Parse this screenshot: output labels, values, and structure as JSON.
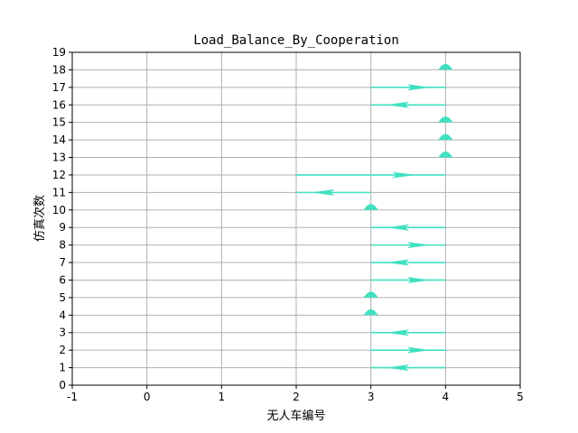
{
  "chart_data": {
    "type": "quiver",
    "title": "Load_Balance_By_Cooperation",
    "xlabel": "无人车编号",
    "ylabel": "仿真次数",
    "xlim": [
      -1,
      5
    ],
    "ylim": [
      0,
      19
    ],
    "xticks": [
      "-1",
      "0",
      "1",
      "2",
      "3",
      "4",
      "5"
    ],
    "yticks": [
      "0",
      "1",
      "2",
      "3",
      "4",
      "5",
      "6",
      "7",
      "8",
      "9",
      "10",
      "11",
      "12",
      "13",
      "14",
      "15",
      "16",
      "17",
      "18",
      "19"
    ],
    "grid": true,
    "arrow_color": "#40e0c0",
    "arrows": [
      {
        "y": 1,
        "from": 4,
        "to": 3
      },
      {
        "y": 2,
        "from": 3,
        "to": 4
      },
      {
        "y": 3,
        "from": 4,
        "to": 3
      },
      {
        "y": 4,
        "from": 3,
        "to": 3
      },
      {
        "y": 5,
        "from": 3,
        "to": 3
      },
      {
        "y": 6,
        "from": 3,
        "to": 4
      },
      {
        "y": 7,
        "from": 4,
        "to": 3
      },
      {
        "y": 8,
        "from": 3,
        "to": 4
      },
      {
        "y": 9,
        "from": 4,
        "to": 3
      },
      {
        "y": 10,
        "from": 3,
        "to": 3
      },
      {
        "y": 11,
        "from": 3,
        "to": 2
      },
      {
        "y": 12,
        "from": 2,
        "to": 4
      },
      {
        "y": 13,
        "from": 4,
        "to": 4
      },
      {
        "y": 14,
        "from": 4,
        "to": 4
      },
      {
        "y": 15,
        "from": 4,
        "to": 4
      },
      {
        "y": 16,
        "from": 4,
        "to": 3
      },
      {
        "y": 17,
        "from": 3,
        "to": 4
      },
      {
        "y": 18,
        "from": 4,
        "to": 4
      }
    ]
  }
}
